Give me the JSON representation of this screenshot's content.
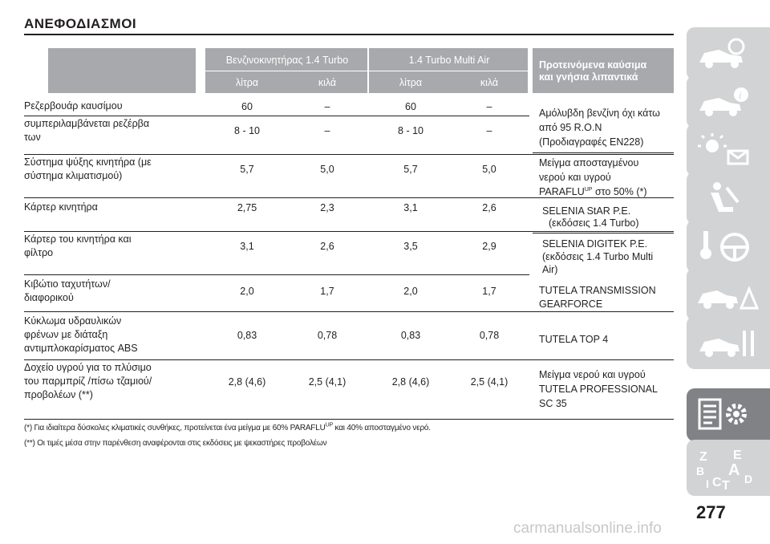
{
  "page": {
    "title": "ΑΝΕΦΟΔΙΑΣΜΟΙ",
    "page_number": "277",
    "watermark": "carmanualsonline.info"
  },
  "table": {
    "header": {
      "group1": "Βενζινοκινητήρας 1.4 Turbo",
      "group2": "1.4 Turbo Multi Air",
      "sub1": "λίτρα",
      "sub2": "κιλά",
      "sub3": "λίτρα",
      "sub4": "κιλά",
      "fuel_line1": "Προτεινόμενα καύσιμα",
      "fuel_line2": "και γνήσια λιπαντικά"
    },
    "rows": [
      {
        "label": [
          "Ρεζερβουάρ καυσίμου"
        ],
        "v": [
          "60",
          "–",
          "60",
          "–"
        ]
      },
      {
        "label": [
          "συμπεριλαμβάνεται ρεζέρβα",
          "των"
        ],
        "v": [
          "8 - 10",
          "–",
          "8 - 10",
          "–"
        ]
      },
      {
        "label": [
          "Σύστημα ψύξης κινητήρα (με",
          "σύστημα κλιματισμού)"
        ],
        "v": [
          "5,7",
          "5,0",
          "5,7",
          "5,0"
        ]
      },
      {
        "label": [
          "Κάρτερ κινητήρα"
        ],
        "v": [
          "2,75",
          "2,3",
          "3,1",
          "2,6"
        ]
      },
      {
        "label": [
          "Κάρτερ του κινητήρα και",
          "φίλτρο"
        ],
        "v": [
          "3,1",
          "2,6",
          "3,5",
          "2,9"
        ]
      },
      {
        "label": [
          "Κιβώτιο ταχυτήτων/",
          "διαφορικού"
        ],
        "v": [
          "2,0",
          "1,7",
          "2,0",
          "1,7"
        ]
      },
      {
        "label": [
          "Κύκλωμα υδραυλικών",
          "φρένων με διάταξη",
          "αντιμπλοκαρίσματος ABS"
        ],
        "v": [
          "0,83",
          "0,78",
          "0,83",
          "0,78"
        ]
      },
      {
        "label": [
          "Δοχείο υγρού για το πλύσιμο",
          "του παρμπρίζ /πίσω τζαμιού/",
          "προβολέων (**)"
        ],
        "v": [
          "2,8 (4,6)",
          "2,5 (4,1)",
          "2,8 (4,6)",
          "2,5 (4,1)"
        ]
      }
    ],
    "fluids": {
      "fuel": [
        "Αμόλυβδη βενζίνη όχι κάτω",
        "από 95 R.O.N",
        "(Προδιαγραφές EN228)"
      ],
      "coolant_line1": "Μείγμα αποσταγμένου",
      "coolant_line2": "νερού και υγρού",
      "coolant_line3_a": "PARAFLU",
      "coolant_line3_sup": "UP",
      "coolant_line3_b": " στο 50% (*)",
      "oil_turbo": [
        "SELENIA StAR P.E.",
        "(εκδόσεις 1.4 Turbo)"
      ],
      "oil_multiair": [
        "SELENIA DIGITEK  P.E.",
        "(εκδόσεις 1.4 Turbo Multi",
        "Air)"
      ],
      "transmission": [
        "TUTELA TRANSMISSION",
        "GEARFORCE"
      ],
      "brake": "TUTELA TOP 4",
      "washer": [
        "Μείγμα νερού και υγρού",
        "TUTELA PROFESSIONAL",
        "SC 35"
      ]
    }
  },
  "notes": {
    "note1_a": "(*) Για ιδιαίτερα δύσκολες κλιματικές συνθήκες, προτείνεται ένα μείγμα με 60% PARAFLU",
    "note1_sup": "UP",
    "note1_b": " και 40% αποσταγμένο νερό.",
    "note2": "(**) Οι τιμές μέσα στην παρένθεση αναφέρονται στις εκδόσεις με ψεκαστήρες προβολέων"
  },
  "sidebar": {
    "tabs": [
      {
        "icon": "car-dashboard-icon",
        "active": false
      },
      {
        "icon": "car-info-icon",
        "active": false
      },
      {
        "icon": "warning-lights-message-icon",
        "active": false
      },
      {
        "icon": "airbag-seat-icon",
        "active": false
      },
      {
        "icon": "key-steering-wheel-icon",
        "active": false
      },
      {
        "icon": "emergency-car-icon",
        "active": false
      },
      {
        "icon": "maintenance-tools-icon",
        "active": false
      },
      {
        "icon": "technical-data-gear-icon",
        "active": true
      },
      {
        "icon": "alphabetical-index-icon",
        "active": false
      }
    ],
    "index_letters": [
      "Z",
      "E",
      "B",
      "A",
      "I",
      "C",
      "T",
      "D"
    ]
  },
  "colors": {
    "header_gray": "#a7a9ac",
    "tab_gray": "#d1d3d4",
    "tab_active": "#808285",
    "text": "#231f20"
  }
}
